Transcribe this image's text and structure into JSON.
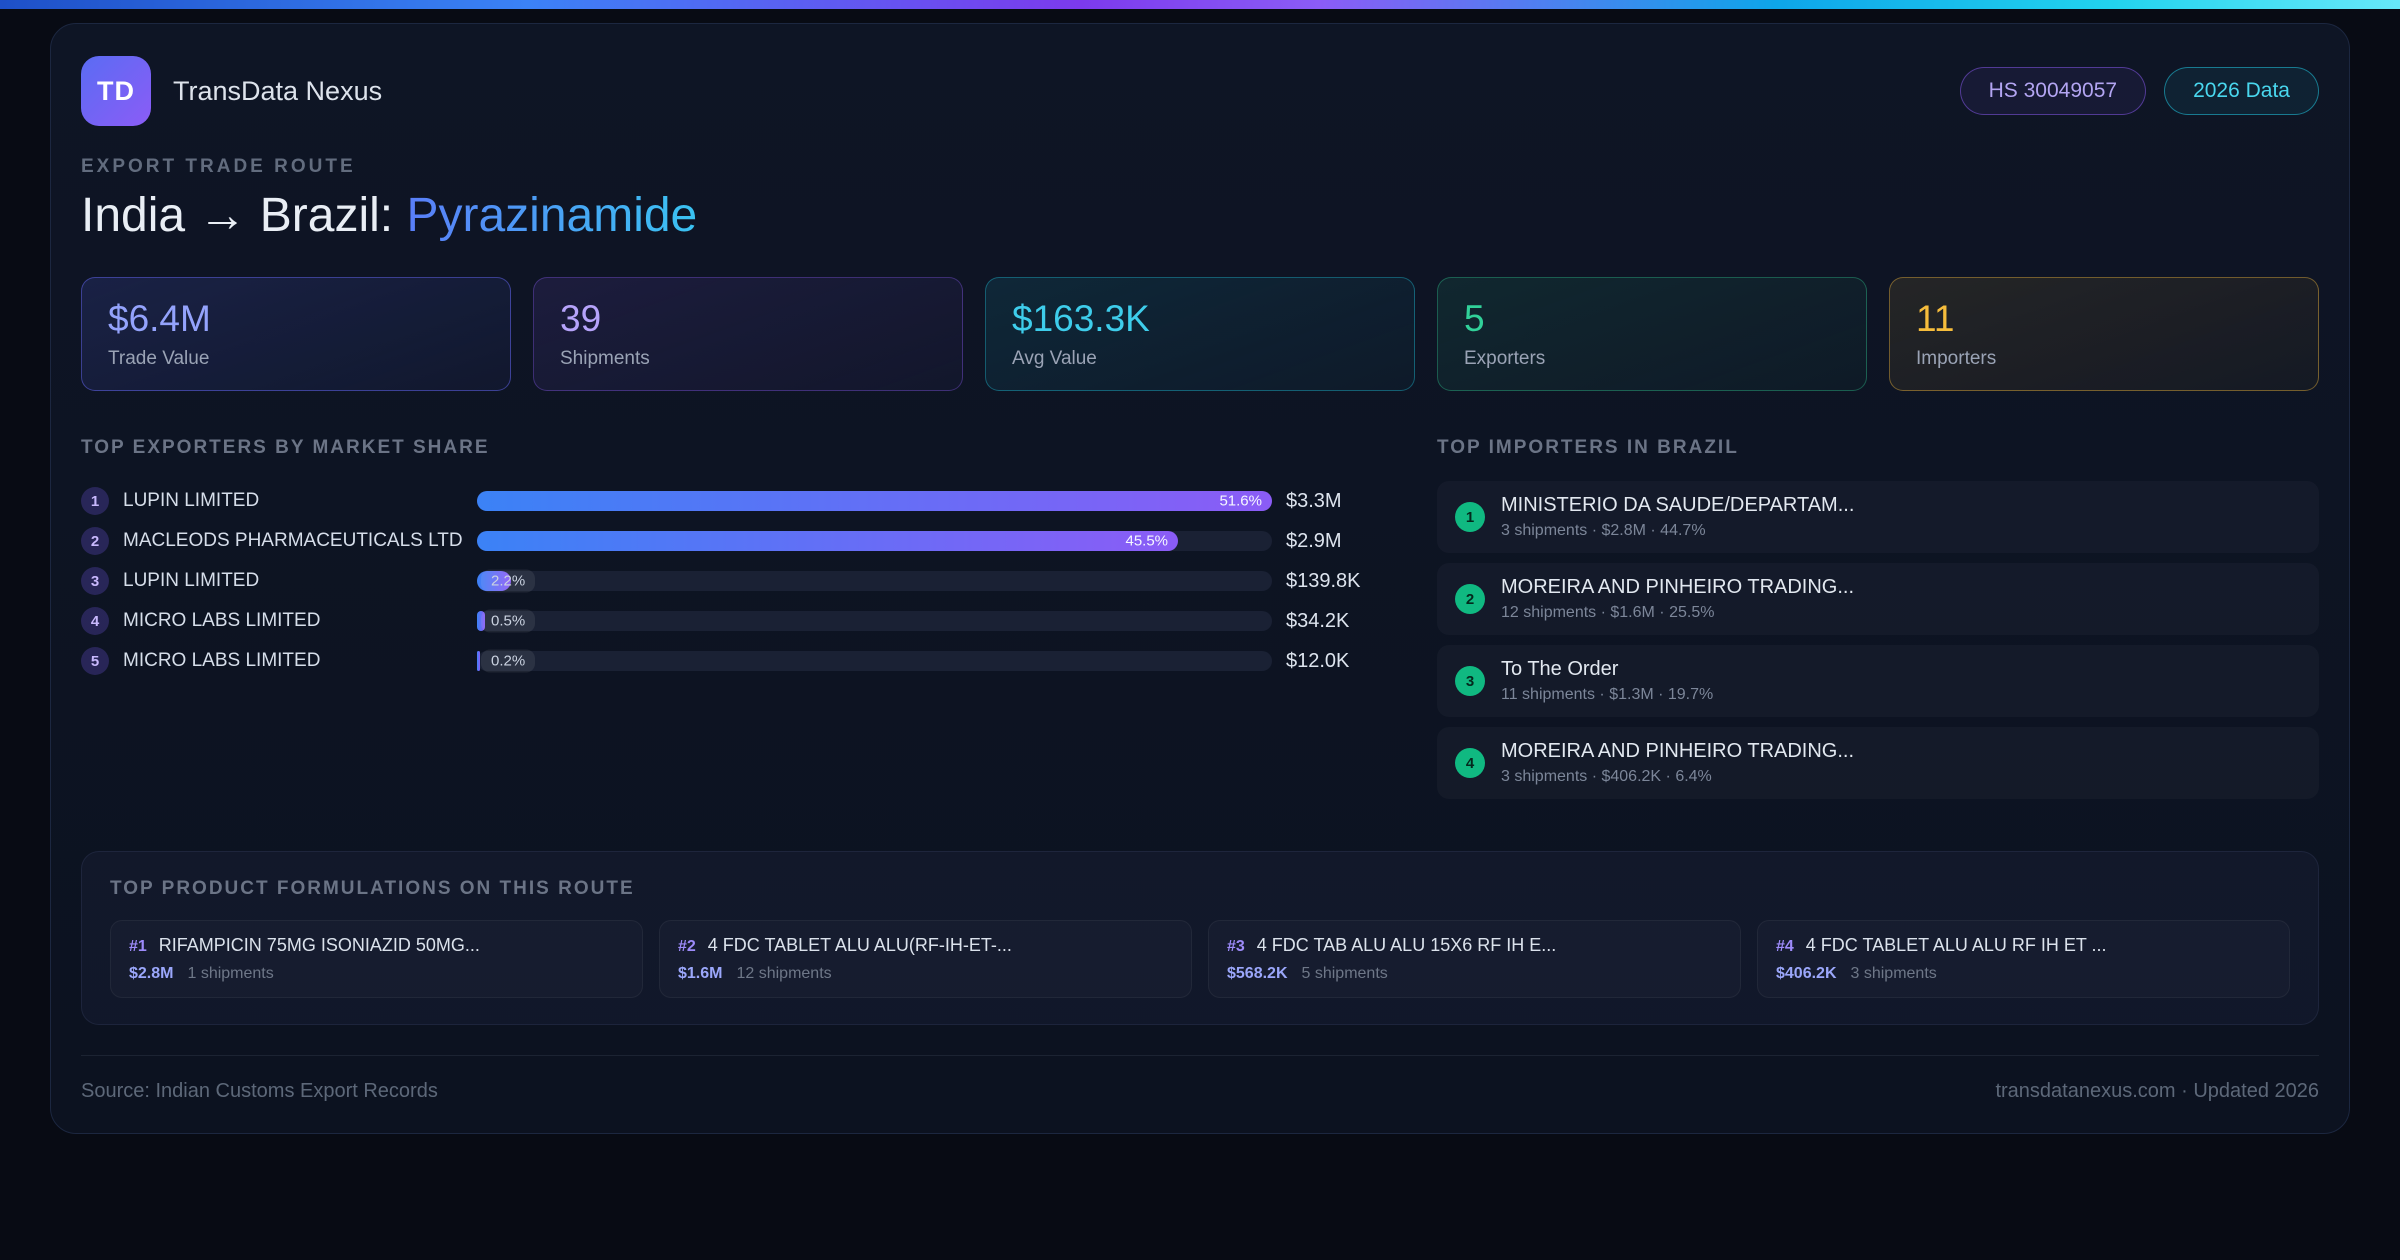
{
  "header": {
    "logo": "TD",
    "app_name": "TransData Nexus",
    "badge_hs": "HS 30049057",
    "badge_year": "2026 Data"
  },
  "title": {
    "eyebrow": "EXPORT TRADE ROUTE",
    "route_prefix": "India → Brazil: ",
    "product": "Pyrazinamide"
  },
  "stats": [
    {
      "value": "$6.4M",
      "label": "Trade Value",
      "value_color": "#94a3fc",
      "border": "rgba(99,102,241,0.5)",
      "bg": "linear-gradient(160deg, rgba(91,105,245,0.16), rgba(91,105,245,0.05))"
    },
    {
      "value": "39",
      "label": "Shipments",
      "value_color": "#b6a3fa",
      "border": "rgba(139,92,246,0.35)",
      "bg": "linear-gradient(160deg, rgba(139,92,246,0.12), rgba(139,92,246,0.04))"
    },
    {
      "value": "$163.3K",
      "label": "Avg Value",
      "value_color": "#3ecdeb",
      "border": "rgba(34,211,238,0.35)",
      "bg": "linear-gradient(160deg, rgba(34,211,238,0.10), rgba(34,211,238,0.03))"
    },
    {
      "value": "5",
      "label": "Exporters",
      "value_color": "#31d199",
      "border": "rgba(52,211,153,0.35)",
      "bg": "linear-gradient(160deg, rgba(52,211,153,0.10), rgba(52,211,153,0.03))"
    },
    {
      "value": "11",
      "label": "Importers",
      "value_color": "#f6bd3c",
      "border": "rgba(250,190,60,0.4)",
      "bg": "linear-gradient(160deg, rgba(250,190,60,0.10), rgba(250,190,60,0.03))"
    }
  ],
  "exporters": {
    "heading": "TOP EXPORTERS BY MARKET SHARE",
    "max_pct": 51.6,
    "rows": [
      {
        "rank": "1",
        "name": "LUPIN LIMITED",
        "share_pct": 51.6,
        "share_label": "51.6%",
        "value": "$3.3M"
      },
      {
        "rank": "2",
        "name": "MACLEODS PHARMACEUTICALS LTD",
        "share_pct": 45.5,
        "share_label": "45.5%",
        "value": "$2.9M"
      },
      {
        "rank": "3",
        "name": "LUPIN LIMITED",
        "share_pct": 2.2,
        "share_label": "2.2%",
        "value": "$139.8K"
      },
      {
        "rank": "4",
        "name": "MICRO LABS LIMITED",
        "share_pct": 0.5,
        "share_label": "0.5%",
        "value": "$34.2K"
      },
      {
        "rank": "5",
        "name": "MICRO LABS LIMITED",
        "share_pct": 0.2,
        "share_label": "0.2%",
        "value": "$12.0K"
      }
    ]
  },
  "importers": {
    "heading": "TOP IMPORTERS IN BRAZIL",
    "rows": [
      {
        "rank": "1",
        "name": "MINISTERIO DA SAUDE/DEPARTAM...",
        "meta": "3 shipments · $2.8M · 44.7%"
      },
      {
        "rank": "2",
        "name": "MOREIRA AND PINHEIRO TRADING...",
        "meta": "12 shipments · $1.6M · 25.5%"
      },
      {
        "rank": "3",
        "name": "To The Order",
        "meta": "11 shipments · $1.3M · 19.7%"
      },
      {
        "rank": "4",
        "name": "MOREIRA AND PINHEIRO TRADING...",
        "meta": "3 shipments · $406.2K · 6.4%"
      }
    ]
  },
  "products": {
    "heading": "TOP PRODUCT FORMULATIONS ON THIS ROUTE",
    "cards": [
      {
        "rank": "#1",
        "name": "RIFAMPICIN 75MG ISONIAZID 50MG...",
        "value": "$2.8M",
        "shipments": "1 shipments"
      },
      {
        "rank": "#2",
        "name": "4 FDC TABLET ALU ALU(RF-IH-ET-...",
        "value": "$1.6M",
        "shipments": "12 shipments"
      },
      {
        "rank": "#3",
        "name": "4 FDC TAB ALU ALU 15X6 RF IH E...",
        "value": "$568.2K",
        "shipments": "5 shipments"
      },
      {
        "rank": "#4",
        "name": "4 FDC TABLET ALU ALU RF IH ET ...",
        "value": "$406.2K",
        "shipments": "3 shipments"
      }
    ]
  },
  "footer": {
    "source": "Source: Indian Customs Export Records",
    "site": "transdatanexus.com · Updated 2026"
  }
}
